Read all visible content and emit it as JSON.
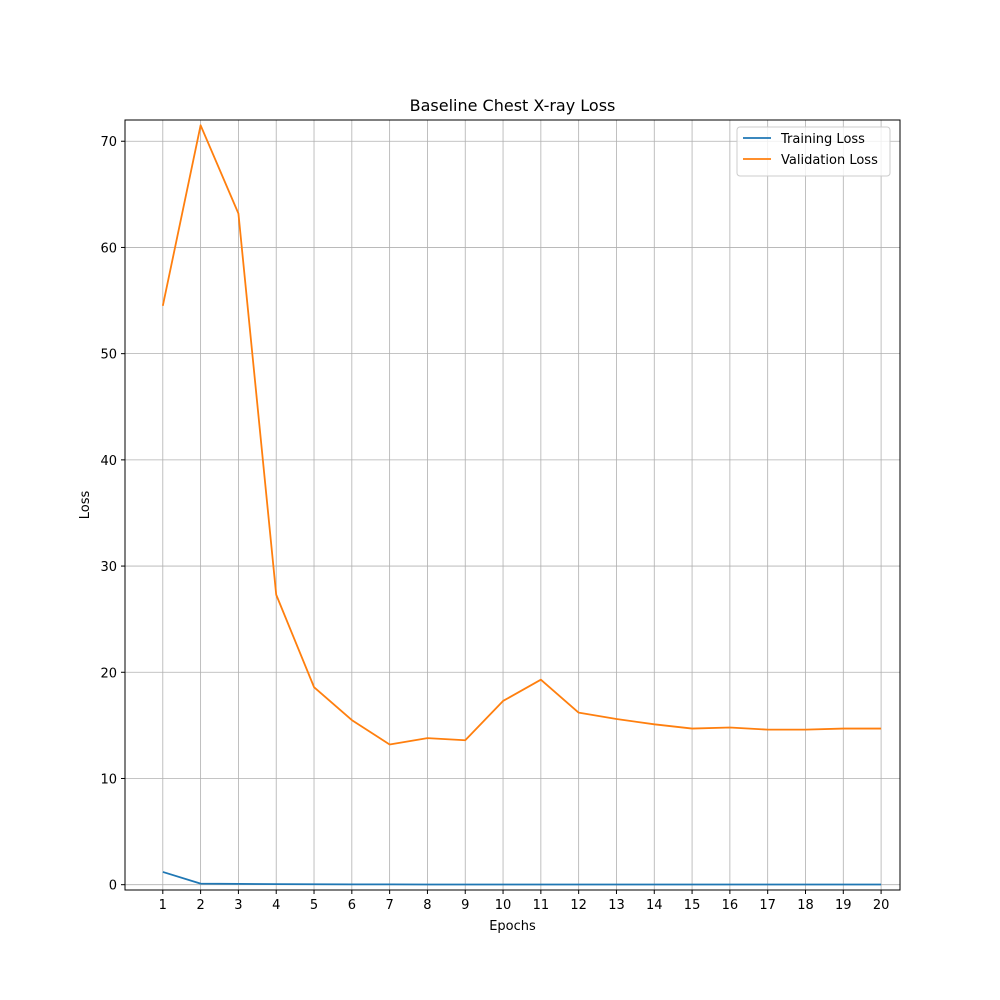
{
  "chart_data": {
    "type": "line",
    "title": "Baseline Chest X-ray Loss",
    "xlabel": "Epochs",
    "ylabel": "Loss",
    "x": [
      1,
      2,
      3,
      4,
      5,
      6,
      7,
      8,
      9,
      10,
      11,
      12,
      13,
      14,
      15,
      16,
      17,
      18,
      19,
      20
    ],
    "xlim": [
      0,
      20.5
    ],
    "ylim": [
      -0.5,
      72
    ],
    "yticks": [
      0,
      10,
      20,
      30,
      40,
      50,
      60,
      70
    ],
    "grid": true,
    "legend_position": "top-right",
    "series": [
      {
        "name": "Training Loss",
        "color": "#1f77b4",
        "values": [
          1.2,
          0.1,
          0.08,
          0.05,
          0.04,
          0.03,
          0.03,
          0.02,
          0.02,
          0.02,
          0.02,
          0.02,
          0.02,
          0.02,
          0.02,
          0.02,
          0.02,
          0.02,
          0.02,
          0.02
        ]
      },
      {
        "name": "Validation Loss",
        "color": "#ff7f0e",
        "values": [
          54.5,
          71.5,
          63.2,
          27.3,
          18.6,
          15.5,
          13.2,
          13.8,
          13.6,
          17.3,
          19.3,
          16.2,
          15.6,
          15.1,
          14.7,
          14.8,
          14.6,
          14.6,
          14.7,
          14.7
        ]
      }
    ]
  }
}
